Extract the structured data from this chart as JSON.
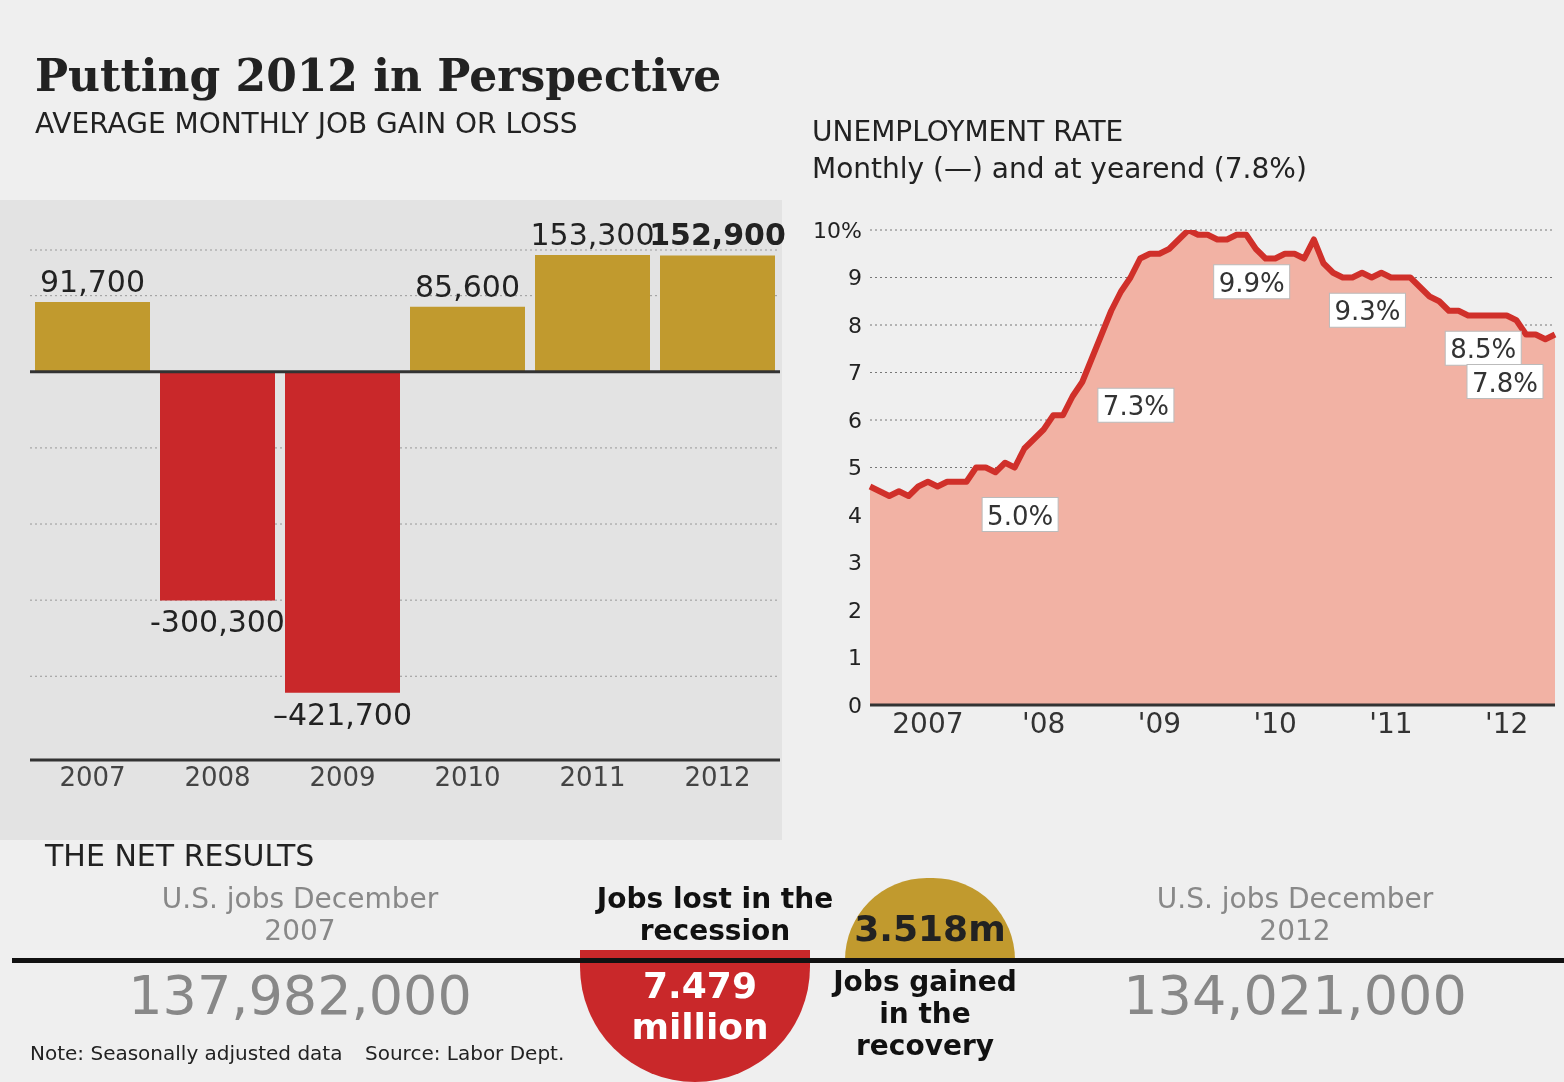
{
  "chart_data": [
    {
      "type": "bar",
      "title": "Putting 2012 in Perspective",
      "subtitle": "AVERAGE MONTHLY JOB GAIN OR LOSS",
      "categories": [
        "2007",
        "2008",
        "2009",
        "2010",
        "2011",
        "2012"
      ],
      "values": [
        91700,
        -300300,
        -421700,
        85600,
        153300,
        152900
      ],
      "colors": [
        "#c19a2e",
        "#c9282a",
        "#c9282a",
        "#c19a2e",
        "#c19a2e",
        "#c19a2e"
      ],
      "value_labels": [
        "91,700",
        "-300,300",
        "–421,700",
        "85,600",
        "153,300",
        "152,900"
      ],
      "ylim": [
        -510000,
        160000
      ],
      "yticks": [
        {
          "value": 100000,
          "label": null
        },
        {
          "value": -100000,
          "label": null
        },
        {
          "value": -200000,
          "label": null
        },
        {
          "value": -300000,
          "label": null
        },
        {
          "value": -400000,
          "label": null
        }
      ],
      "grid": "y",
      "tick_labels": "x"
    },
    {
      "type": "area",
      "title": "UNEMPLOYMENT RATE",
      "subtitle": "Monthly (—) and at yearend (7.8%)",
      "categories": [
        null,
        null,
        null,
        null,
        null,
        null,
        "2007",
        null,
        null,
        null,
        null,
        null,
        null,
        null,
        null,
        null,
        null,
        null,
        "'08",
        null,
        null,
        null,
        null,
        null,
        null,
        null,
        null,
        null,
        null,
        null,
        "'09",
        null,
        null,
        null,
        null,
        null,
        null,
        null,
        null,
        null,
        null,
        null,
        "'10",
        null,
        null,
        null,
        null,
        null,
        null,
        null,
        null,
        null,
        null,
        null,
        "'11",
        null,
        null,
        null,
        null,
        null,
        null,
        null,
        null,
        null,
        null,
        null,
        "'12",
        null,
        null,
        null,
        null,
        null
      ],
      "series": [
        {
          "color": "#d0302a",
          "values": [
            4.6,
            4.5,
            4.4,
            4.5,
            4.4,
            4.6,
            4.7,
            4.6,
            4.7,
            4.7,
            4.7,
            5.0,
            5.0,
            4.9,
            5.1,
            5.0,
            5.4,
            5.6,
            5.8,
            6.1,
            6.1,
            6.5,
            6.8,
            7.3,
            7.8,
            8.3,
            8.7,
            9.0,
            9.4,
            9.5,
            9.5,
            9.6,
            9.8,
            10.0,
            9.9,
            9.9,
            9.8,
            9.8,
            9.9,
            9.9,
            9.6,
            9.4,
            9.4,
            9.5,
            9.5,
            9.4,
            9.8,
            9.3,
            9.1,
            9.0,
            9.0,
            9.1,
            9.0,
            9.1,
            9.0,
            9.0,
            9.0,
            8.8,
            8.6,
            8.5,
            8.3,
            8.3,
            8.2,
            8.2,
            8.2,
            8.2,
            8.2,
            8.1,
            7.8,
            7.8,
            7.7,
            7.8
          ]
        }
      ],
      "annotations": [
        "5.0%",
        "7.3%",
        "9.9%",
        "9.3%",
        "8.5%",
        "7.8%"
      ],
      "ylim": [
        0,
        10
      ],
      "yticks": [
        0,
        1,
        2,
        3,
        4,
        5,
        6,
        7,
        8,
        9,
        {
          "value": 10,
          "label": "10%"
        }
      ],
      "grid": "y"
    },
    {
      "type": "other",
      "title": "THE NET RESULTS",
      "annotations": [
        "U.S. jobs December 2007",
        "137,982,000",
        "Jobs lost in the recession",
        "7.479 million",
        "3.518m",
        "Jobs gained in the recovery",
        "U.S. jobs December 2012",
        "134,021,000",
        "Note: Seasonally adjusted data",
        "Source: Labor Dept."
      ]
    }
  ]
}
